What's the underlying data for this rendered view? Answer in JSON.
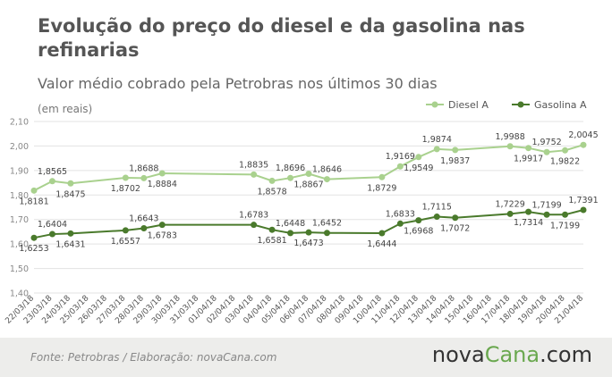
{
  "header": {
    "title": "Evolução do preço do diesel e da gasolina nas refinarias",
    "subtitle": "Valor médio cobrado pela Petrobras nos últimos 30 dias",
    "unit": "(em reais)"
  },
  "footer": {
    "source": "Fonte:  Petrobras  / Elaboração:  novaCana.com",
    "brand_part1": "nova",
    "brand_part2": "Cana",
    "brand_part3": ".com"
  },
  "colors": {
    "diesel": "#a9d18e",
    "gasolina": "#4a7a2c",
    "grid": "#e3e3e3",
    "footer_bg": "#ededeb"
  },
  "chart_data": {
    "type": "line",
    "title": "Evolução do preço do diesel e da gasolina nas refinarias",
    "subtitle": "Valor médio cobrado pela Petrobras nos últimos 30 dias",
    "ylabel": "(em reais)",
    "ylim": [
      1.4,
      2.1
    ],
    "yticks": [
      "1,40",
      "1,50",
      "1,60",
      "1,70",
      "1,80",
      "1,90",
      "2,00",
      "2,10"
    ],
    "yticks_values": [
      1.4,
      1.5,
      1.6,
      1.7,
      1.8,
      1.9,
      2.0,
      2.1
    ],
    "grid": true,
    "legend_position": "top-right",
    "categories": [
      "22/03/18",
      "23/03/18",
      "24/03/18",
      "25/03/18",
      "26/03/18",
      "27/03/18",
      "28/03/18",
      "29/03/18",
      "30/03/18",
      "31/03/18",
      "01/04/18",
      "02/04/18",
      "03/04/18",
      "04/04/18",
      "05/04/18",
      "06/04/18",
      "07/04/18",
      "08/04/18",
      "09/04/18",
      "10/04/18",
      "11/04/18",
      "12/04/18",
      "13/04/18",
      "14/04/18",
      "15/04/18",
      "16/04/18",
      "17/04/18",
      "18/04/18",
      "19/04/18",
      "20/04/18",
      "21/04/18"
    ],
    "series": [
      {
        "name": "Diesel A",
        "values": [
          1.8181,
          1.8565,
          1.8475,
          null,
          null,
          1.8702,
          1.8688,
          1.8884,
          null,
          null,
          null,
          null,
          1.8835,
          1.8578,
          1.8696,
          1.8867,
          1.8646,
          null,
          null,
          1.8729,
          1.9169,
          1.9549,
          1.9874,
          1.9837,
          null,
          null,
          1.9988,
          1.9917,
          1.9752,
          1.9822,
          2.0045
        ],
        "labels": [
          "1,8181",
          "1,8565",
          "1,8475",
          null,
          null,
          "1,8702",
          "1,8688",
          "1,8884",
          null,
          null,
          null,
          null,
          "1,8835",
          "1,8578",
          "1,8696",
          "1,8867",
          "1,8646",
          null,
          null,
          "1,8729",
          "1,9169",
          "1,9549",
          "1,9874",
          "1,9837",
          null,
          null,
          "1,9988",
          "1,9917",
          "1,9752",
          "1,9822",
          "2,0045"
        ],
        "label_pos": [
          "below",
          "above",
          "below",
          null,
          null,
          "below",
          "above",
          "below",
          null,
          null,
          null,
          null,
          "above",
          "below",
          "above",
          "below",
          "above",
          null,
          null,
          "below",
          "above",
          "below",
          "above",
          "below",
          null,
          null,
          "above",
          "below",
          "above",
          "below",
          "above"
        ]
      },
      {
        "name": "Gasolina A",
        "values": [
          1.6253,
          1.6404,
          1.6431,
          null,
          null,
          1.6557,
          1.6643,
          1.6783,
          null,
          null,
          null,
          null,
          1.6783,
          1.6581,
          1.6448,
          1.6473,
          1.6452,
          null,
          null,
          1.6444,
          1.6833,
          1.6968,
          1.7115,
          1.7072,
          null,
          null,
          1.7229,
          1.7314,
          1.7199,
          1.7199,
          1.7391
        ],
        "labels": [
          "1,6253",
          "1,6404",
          "1,6431",
          null,
          null,
          "1,6557",
          "1,6643",
          "1,6783",
          null,
          null,
          null,
          null,
          "1,6783",
          "1,6581",
          "1,6448",
          "1,6473",
          "1,6452",
          null,
          null,
          "1,6444",
          "1,6833",
          "1,6968",
          "1,7115",
          "1,7072",
          null,
          null,
          "1,7229",
          "1,7314",
          "1,7199",
          "1,7199",
          "1,7391"
        ],
        "label_pos": [
          "below",
          "above",
          "below",
          null,
          null,
          "below",
          "above",
          "below",
          null,
          null,
          null,
          null,
          "above",
          "below",
          "above",
          "below",
          "above",
          null,
          null,
          "below",
          "above",
          "below",
          "above",
          "below",
          null,
          null,
          "above",
          "below",
          "above",
          "below",
          "above"
        ]
      }
    ]
  }
}
